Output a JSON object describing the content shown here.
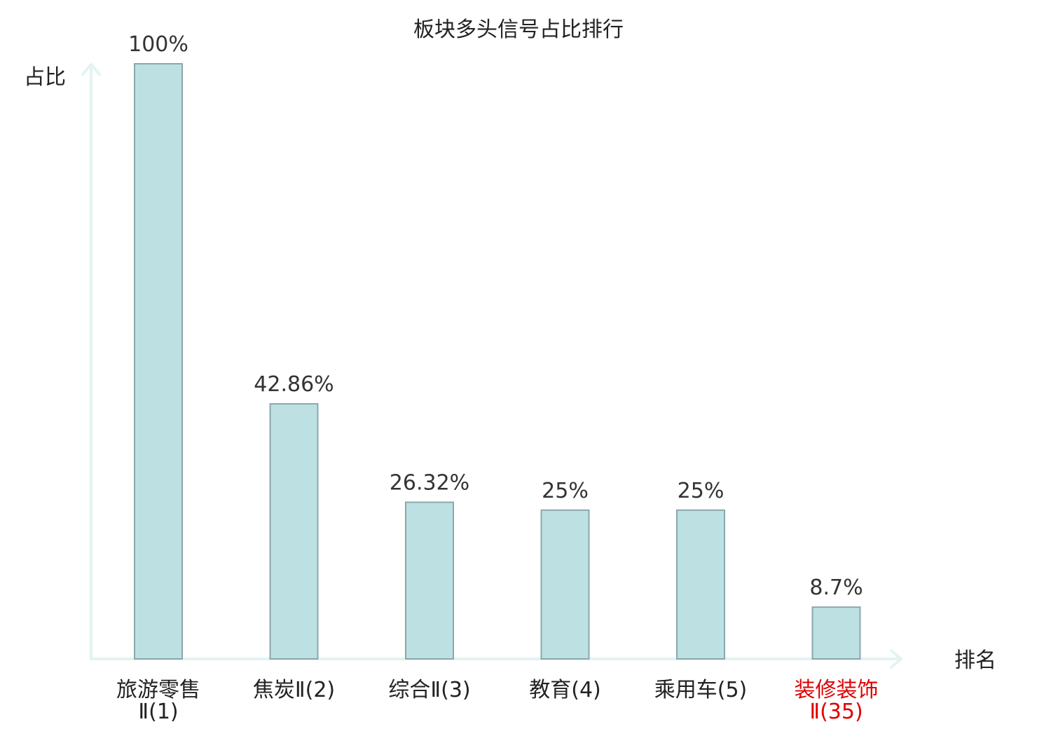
{
  "chart_data": {
    "type": "bar",
    "title": "板块多头信号占比排行",
    "ylabel": "占比",
    "xlabel": "排名",
    "ylim": [
      0,
      100
    ],
    "grid": false,
    "categories": [
      {
        "name": "旅游零售",
        "rank": "Ⅱ(1)",
        "highlight": false
      },
      {
        "name": "焦炭",
        "rank": "Ⅱ(2)",
        "highlight": false
      },
      {
        "name": "综合",
        "rank": "Ⅱ(3)",
        "highlight": false
      },
      {
        "name": "教育",
        "rank": "(4)",
        "highlight": false
      },
      {
        "name": "乘用车",
        "rank": "(5)",
        "highlight": false
      },
      {
        "name": "装修装饰",
        "rank": "Ⅱ(35)",
        "highlight": true
      }
    ],
    "values": [
      100,
      42.86,
      26.32,
      25,
      25,
      8.7
    ],
    "value_labels": [
      "100%",
      "42.86%",
      "26.32%",
      "25%",
      "25%",
      "8.7%"
    ],
    "colors": {
      "bar_fill": "#bde1e3",
      "bar_stroke": "#8aa8ab",
      "axis": "#e3f3f1",
      "highlight": "#e00000",
      "text": "#222222"
    }
  }
}
